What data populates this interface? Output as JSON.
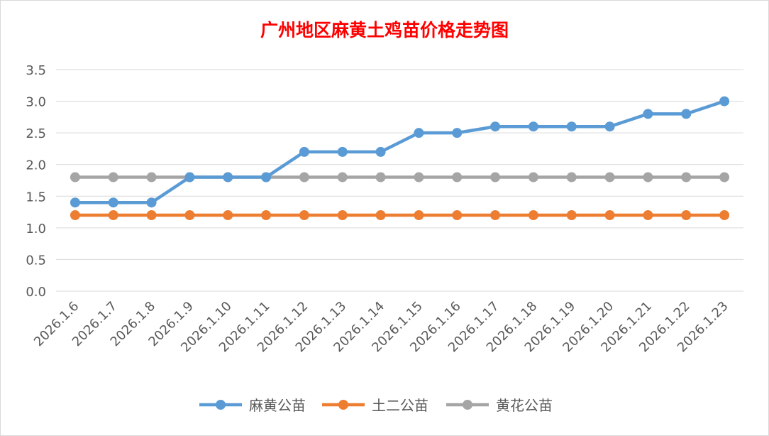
{
  "chart_data": {
    "type": "line",
    "title": "广州地区麻黄土鸡苗价格走势图",
    "xlabel": "",
    "ylabel": "",
    "ylim": [
      0,
      3.5
    ],
    "yticks": [
      "0.0",
      "0.5",
      "1.0",
      "1.5",
      "2.0",
      "2.5",
      "3.0",
      "3.5"
    ],
    "grid": true,
    "legend_position": "bottom",
    "categories": [
      "2026.1.6",
      "2026.1.7",
      "2026.1.8",
      "2026.1.9",
      "2026.1.10",
      "2026.1.11",
      "2026.1.12",
      "2026.1.13",
      "2026.1.14",
      "2026.1.15",
      "2026.1.16",
      "2026.1.17",
      "2026.1.18",
      "2026.1.19",
      "2026.1.20",
      "2026.1.21",
      "2026.1.22",
      "2026.1.23"
    ],
    "series": [
      {
        "name": "麻黄公苗",
        "color": "#5b9bd5",
        "values": [
          1.4,
          1.4,
          1.4,
          1.8,
          1.8,
          1.8,
          2.2,
          2.2,
          2.2,
          2.5,
          2.5,
          2.6,
          2.6,
          2.6,
          2.6,
          2.8,
          2.8,
          3.0
        ]
      },
      {
        "name": "土二公苗",
        "color": "#ed7d31",
        "values": [
          1.2,
          1.2,
          1.2,
          1.2,
          1.2,
          1.2,
          1.2,
          1.2,
          1.2,
          1.2,
          1.2,
          1.2,
          1.2,
          1.2,
          1.2,
          1.2,
          1.2,
          1.2
        ]
      },
      {
        "name": "黄花公苗",
        "color": "#a5a5a5",
        "values": [
          1.8,
          1.8,
          1.8,
          1.8,
          1.8,
          1.8,
          1.8,
          1.8,
          1.8,
          1.8,
          1.8,
          1.8,
          1.8,
          1.8,
          1.8,
          1.8,
          1.8,
          1.8
        ]
      }
    ]
  }
}
